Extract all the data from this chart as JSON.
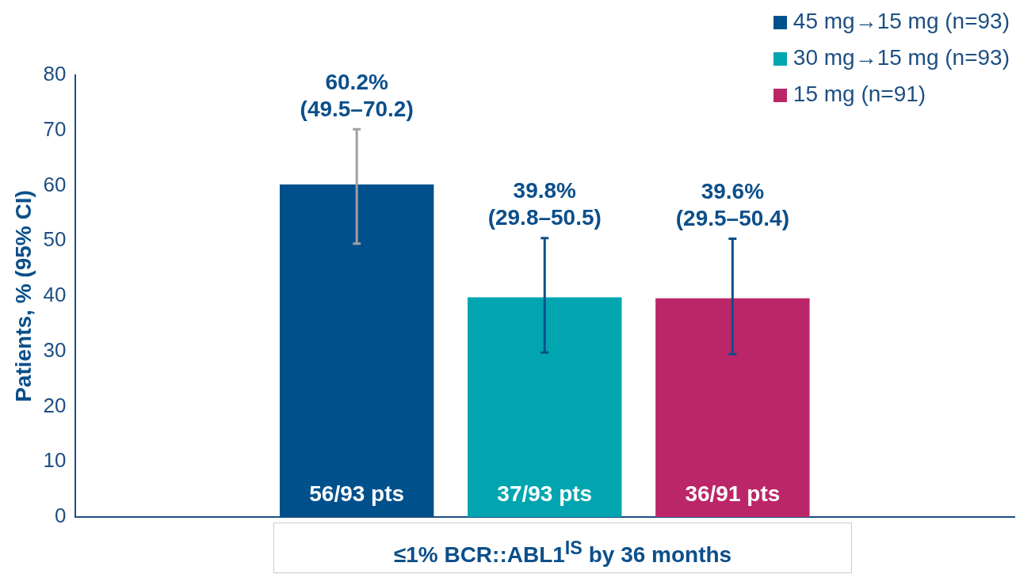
{
  "chart_data": {
    "type": "bar",
    "ylabel": "Patients, % (95% CI)",
    "xlabel": "≤1% BCR::ABL1$^{IS}$ by 36 months",
    "categories": [
      null
    ],
    "series": [
      {
        "name": "45 mg→15 mg (n=93)",
        "color": "#00508c",
        "values": [
          60.2
        ],
        "errors": [
          [
            49.5,
            70.2
          ]
        ],
        "value_labels": [
          "60.2%\n(49.5–70.2)"
        ]
      },
      {
        "name": "30 mg→15 mg (n=93)",
        "color": "#00a5b0",
        "values": [
          39.8
        ],
        "errors": [
          [
            29.8,
            50.5
          ]
        ],
        "value_labels": [
          "39.8%\n(29.8–50.5)"
        ]
      },
      {
        "name": "15 mg (n=91)",
        "color": "#bb2668",
        "values": [
          39.6
        ],
        "errors": [
          [
            29.5,
            50.4
          ]
        ],
        "value_labels": [
          "39.6%\n(29.5–50.4)"
        ]
      }
    ],
    "annotations": [
      "56/93 pts",
      "37/93 pts",
      "36/91 pts"
    ],
    "ylim": [
      0,
      80
    ],
    "yticks": [
      0,
      10,
      20,
      30,
      40,
      50,
      60,
      70,
      80
    ],
    "grid": false,
    "legend": "top right"
  }
}
